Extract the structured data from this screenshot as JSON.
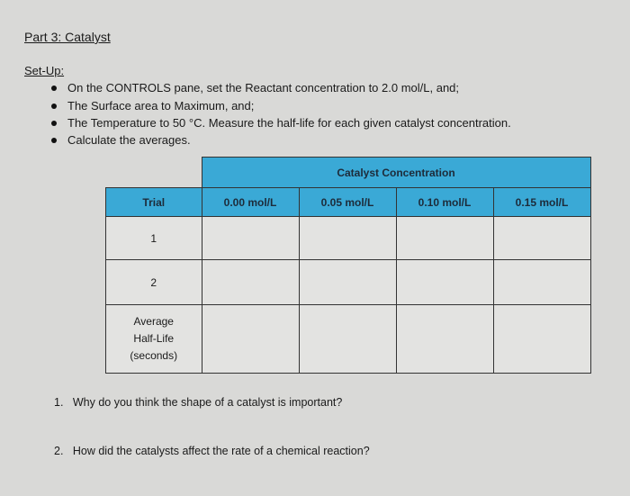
{
  "title": "Part 3: Catalyst",
  "setup_heading": "Set-Up:",
  "bullets": [
    "On the CONTROLS pane, set the Reactant concentration to 2.0 mol/L, and;",
    "The Surface area to Maximum, and;",
    "The Temperature to 50 °C. Measure the half-life for each given catalyst concentration.",
    "Calculate the averages."
  ],
  "table": {
    "group_header": "Catalyst Concentration",
    "row_header": "Trial",
    "columns": [
      "0.00 mol/L",
      "0.05 mol/L",
      "0.10 mol/L",
      "0.15 mol/L"
    ],
    "rows": [
      "1",
      "2"
    ],
    "average_label": [
      "Average",
      "Half-Life",
      "(seconds)"
    ],
    "header_color": "#3aa9d6"
  },
  "questions": [
    {
      "number": "1.",
      "text": "Why do you think the shape of a catalyst is important?"
    },
    {
      "number": "2.",
      "text": "How did the catalysts affect the rate of a chemical reaction?"
    }
  ]
}
